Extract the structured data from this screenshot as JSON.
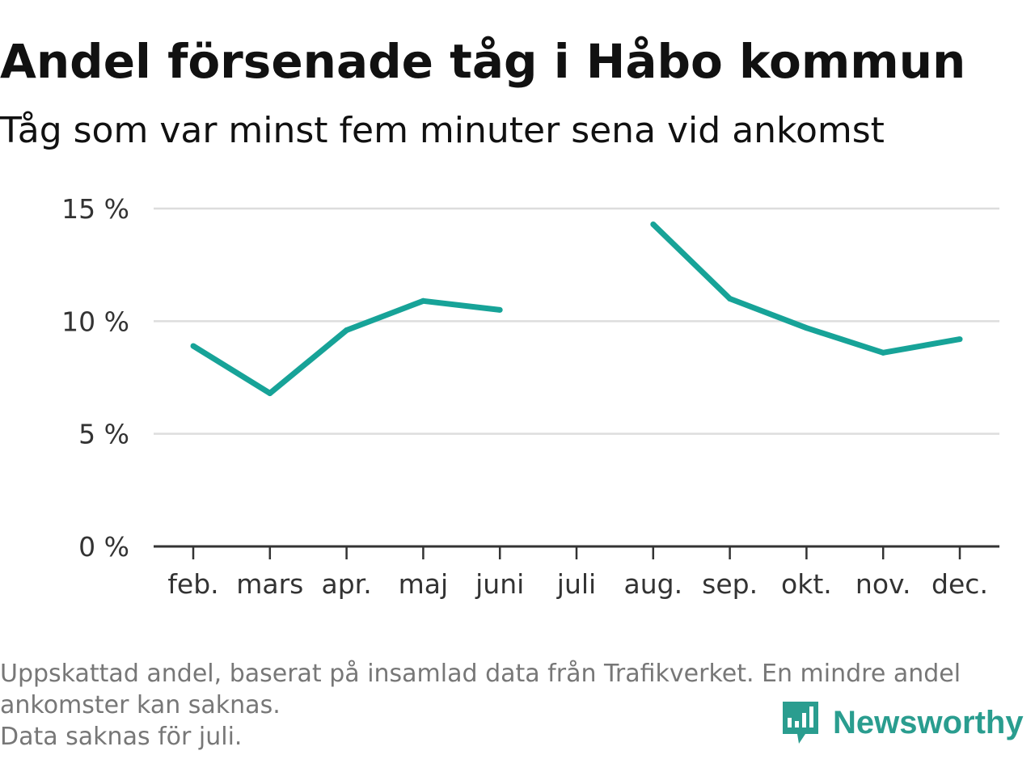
{
  "header": {
    "title": "Andel försenade tåg i Håbo kommun",
    "subtitle": "Tåg som var minst fem minuter sena vid ankomst"
  },
  "chart_data": {
    "type": "line",
    "title": "Andel försenade tåg i Håbo kommun",
    "subtitle": "Tåg som var minst fem minuter sena vid ankomst",
    "xlabel": "",
    "ylabel": "",
    "categories": [
      "feb.",
      "mars",
      "apr.",
      "maj",
      "juni",
      "juli",
      "aug.",
      "sep.",
      "okt.",
      "nov.",
      "dec."
    ],
    "series": [
      {
        "values": [
          8.9,
          6.8,
          9.6,
          10.9,
          10.5,
          null,
          14.3,
          11.0,
          9.7,
          8.6,
          9.2
        ]
      }
    ],
    "ylim": [
      0,
      15
    ],
    "yticks": [
      0,
      5,
      10,
      15
    ],
    "ytick_labels": [
      "0 %",
      "5 %",
      "10 %",
      "15 %"
    ],
    "grid": true,
    "line_color": "#17a398",
    "gridline_color": "#dddddd",
    "axis_color": "#333333"
  },
  "footer": {
    "note_line1": "Uppskattad andel, baserat på insamlad data från Trafikverket. En mindre andel",
    "note_line2": "ankomster kan saknas.",
    "note_line3": "Data saknas för juli.",
    "brand": "Newsworthy",
    "brand_icon": "bar-chart-speech-bubble-icon",
    "brand_color": "#2a9d8f"
  }
}
